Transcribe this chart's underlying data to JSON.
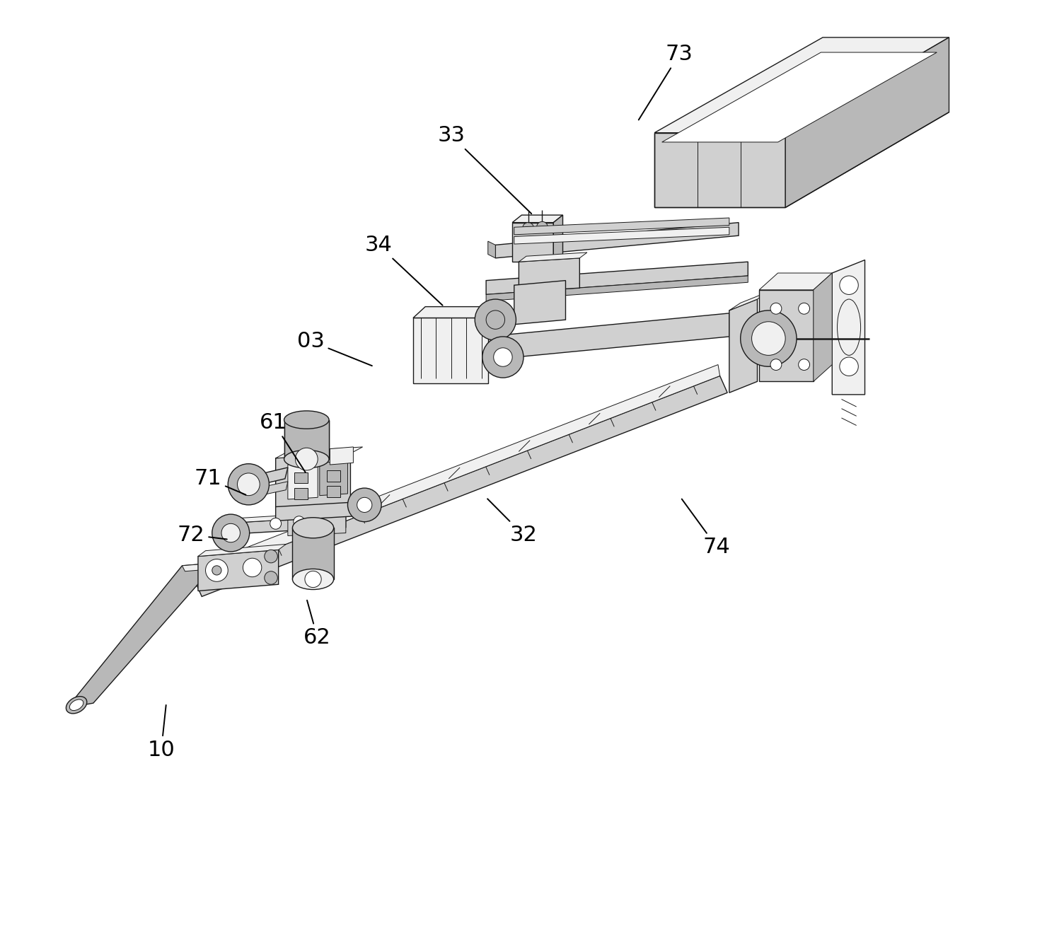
{
  "figure_width": 14.8,
  "figure_height": 13.22,
  "dpi": 100,
  "background_color": "#ffffff",
  "line_color": "#1a1a1a",
  "line_width": 1.5,
  "annotation_fontsize": 22,
  "annotation_color": "#000000",
  "annotations": [
    {
      "label": "73",
      "xt": 0.652,
      "yt": 0.942,
      "xa": 0.622,
      "ya": 0.87
    },
    {
      "label": "33",
      "xt": 0.408,
      "yt": 0.855,
      "xa": 0.51,
      "ya": 0.77
    },
    {
      "label": "34",
      "xt": 0.33,
      "yt": 0.738,
      "xa": 0.415,
      "ya": 0.672
    },
    {
      "label": "03",
      "xt": 0.258,
      "yt": 0.635,
      "xa": 0.34,
      "ya": 0.608
    },
    {
      "label": "61",
      "xt": 0.218,
      "yt": 0.548,
      "xa": 0.268,
      "ya": 0.493
    },
    {
      "label": "71",
      "xt": 0.148,
      "yt": 0.488,
      "xa": 0.205,
      "ya": 0.47
    },
    {
      "label": "72",
      "xt": 0.13,
      "yt": 0.428,
      "xa": 0.185,
      "ya": 0.423
    },
    {
      "label": "62",
      "xt": 0.265,
      "yt": 0.318,
      "xa": 0.268,
      "ya": 0.36
    },
    {
      "label": "10",
      "xt": 0.098,
      "yt": 0.198,
      "xa": 0.118,
      "ya": 0.248
    },
    {
      "label": "32",
      "xt": 0.485,
      "yt": 0.428,
      "xa": 0.46,
      "ya": 0.468
    },
    {
      "label": "74",
      "xt": 0.692,
      "yt": 0.415,
      "xa": 0.668,
      "ya": 0.468
    }
  ]
}
